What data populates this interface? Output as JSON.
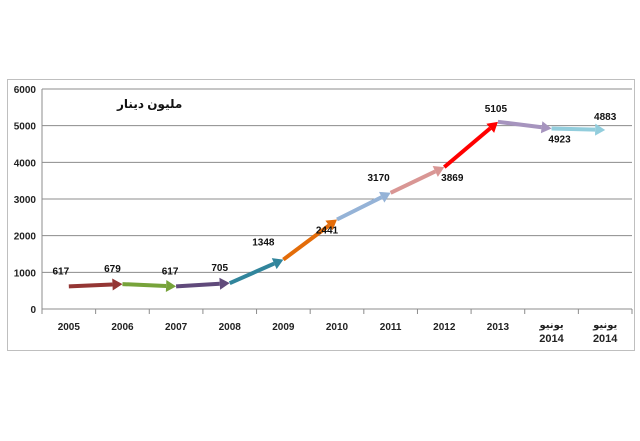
{
  "chart_data": {
    "type": "line",
    "unit_label": "مليون دينار",
    "categories": [
      {
        "top": "",
        "bottom": "2005"
      },
      {
        "top": "",
        "bottom": "2006"
      },
      {
        "top": "",
        "bottom": "2007"
      },
      {
        "top": "",
        "bottom": "2008"
      },
      {
        "top": "",
        "bottom": "2009"
      },
      {
        "top": "",
        "bottom": "2010"
      },
      {
        "top": "",
        "bottom": "2011"
      },
      {
        "top": "",
        "bottom": "2012"
      },
      {
        "top": "",
        "bottom": "2013"
      },
      {
        "top": "يونيو",
        "bottom": "2014"
      },
      {
        "top": "يونيو",
        "bottom": "2014"
      }
    ],
    "values": [
      617,
      679,
      617,
      705,
      1348,
      2441,
      3170,
      3869,
      5105,
      4923,
      4883
    ],
    "data_labels": [
      "617",
      "679",
      "617",
      "705",
      "1348",
      "2441",
      "3170",
      "3869",
      "5105",
      "4923",
      "4883"
    ],
    "yticks": [
      0,
      1000,
      2000,
      3000,
      4000,
      5000,
      6000
    ],
    "ylim": [
      0,
      6000
    ],
    "grid": true,
    "segment_colors": [
      "#943634",
      "#77a33a",
      "#604a7b",
      "#31859c",
      "#e36c09",
      "#95b3d7",
      "#d99694",
      "#ff0000",
      "#a694be",
      "#92cddc"
    ]
  }
}
